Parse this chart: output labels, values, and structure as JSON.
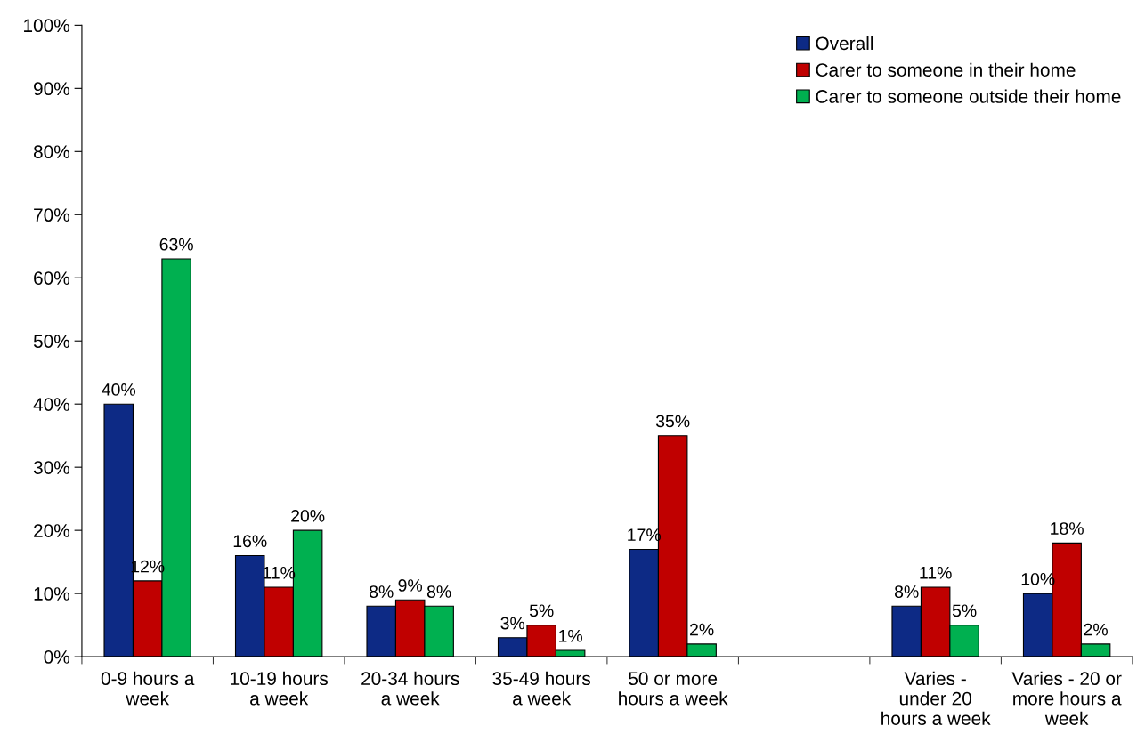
{
  "chart_data": {
    "type": "bar",
    "categories": [
      "0-9 hours a\nweek",
      "10-19 hours\na week",
      "20-34 hours\na week",
      "35-49 hours\na week",
      "50 or more\nhours a week",
      null,
      "Varies -\nunder 20\nhours a week",
      "Varies - 20 or\nmore hours a\nweek"
    ],
    "series": [
      {
        "name": "Overall",
        "color": "#0d2a85",
        "values": [
          40,
          16,
          8,
          3,
          17,
          null,
          8,
          10
        ],
        "value_labels": [
          "40%",
          "16%",
          "8%",
          "3%",
          "17%",
          null,
          "8%",
          "10%"
        ]
      },
      {
        "name": "Carer to someone in their home",
        "color": "#c00000",
        "values": [
          12,
          11,
          9,
          5,
          35,
          null,
          11,
          18
        ],
        "value_labels": [
          "12%",
          "11%",
          "9%",
          "5%",
          "35%",
          null,
          "11%",
          "18%"
        ]
      },
      {
        "name": "Carer to someone outside their home",
        "color": "#00b050",
        "values": [
          63,
          20,
          8,
          1,
          2,
          null,
          5,
          2
        ],
        "value_labels": [
          "63%",
          "20%",
          "8%",
          "1%",
          "2%",
          null,
          "5%",
          "2%"
        ]
      }
    ],
    "ylim": [
      0,
      100
    ],
    "yticks": [
      {
        "value": 0,
        "label": "0%"
      },
      {
        "value": 10,
        "label": "10%"
      },
      {
        "value": 20,
        "label": "20%"
      },
      {
        "value": 30,
        "label": "30%"
      },
      {
        "value": 40,
        "label": "40%"
      },
      {
        "value": 50,
        "label": "50%"
      },
      {
        "value": 60,
        "label": "60%"
      },
      {
        "value": 70,
        "label": "70%"
      },
      {
        "value": 80,
        "label": "80%"
      },
      {
        "value": 90,
        "label": "90%"
      },
      {
        "value": 100,
        "label": "100%"
      }
    ],
    "grid": false,
    "legend": "top right"
  }
}
